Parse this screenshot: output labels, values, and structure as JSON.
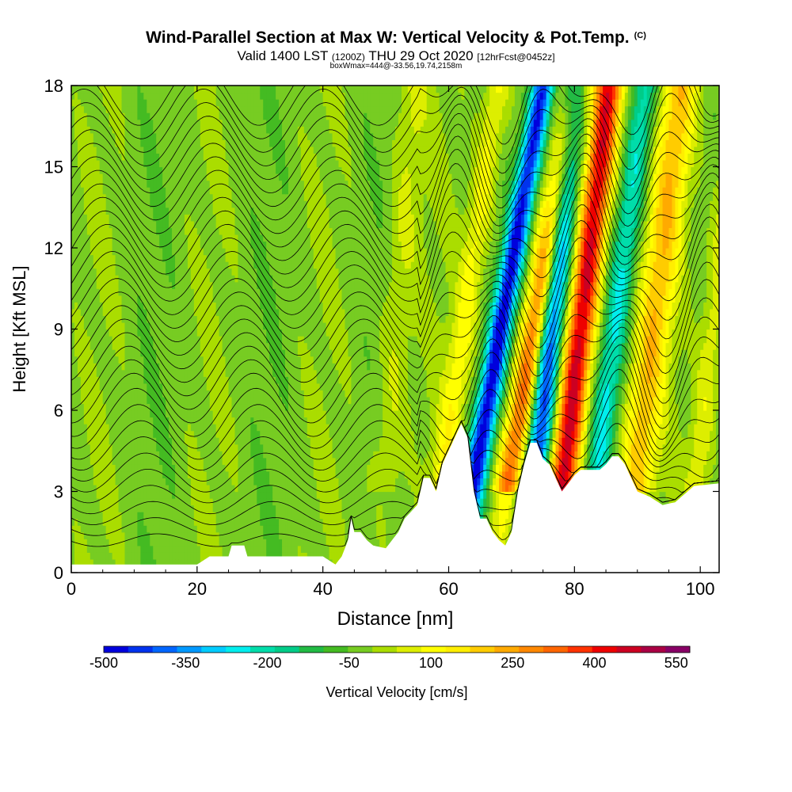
{
  "title": {
    "main": "Wind-Parallel Section at Max W: Vertical Velocity & Pot.Temp.",
    "copyright": "(C)",
    "valid_prefix": "Valid 1400 LST",
    "valid_utc": "(1200Z)",
    "valid_date": "THU 29 Oct 2020",
    "forecast": "[12hrFcst@0452z]",
    "box_info": "boxWmax=444@-33.56,19.74,2158m"
  },
  "colors": {
    "terrain": "#ffffff",
    "isentrope": "#000000",
    "palette": [
      "#0000dd",
      "#0033ee",
      "#0066ff",
      "#0099ff",
      "#00ccff",
      "#00eeee",
      "#00ddaa",
      "#00cc88",
      "#22bb44",
      "#44bb22",
      "#77cc22",
      "#aadd00",
      "#ddee00",
      "#ffff00",
      "#ffee00",
      "#ffcc00",
      "#ffaa00",
      "#ff8800",
      "#ff6600",
      "#ff3300",
      "#ee0000",
      "#cc0022",
      "#aa0044",
      "#880066"
    ]
  },
  "chart_data": {
    "type": "heatmap",
    "xlabel": "Distance [nm]",
    "ylabel": "Height [Kft MSL]",
    "xlim": [
      0,
      103
    ],
    "ylim": [
      0,
      18
    ],
    "x_ticks": [
      "0",
      "20",
      "40",
      "60",
      "80",
      "100"
    ],
    "y_ticks": [
      "0",
      "3",
      "6",
      "9",
      "12",
      "15",
      "18"
    ],
    "colorbar": {
      "label": "Vertical Velocity [cm/s]",
      "ticks": [
        "-500",
        "-350",
        "-200",
        "-50",
        "100",
        "250",
        "400",
        "550"
      ],
      "min": -500,
      "max": 575,
      "step": 50
    },
    "terrain_profile": [
      [
        0,
        0.3
      ],
      [
        20,
        0.3
      ],
      [
        22,
        0.6
      ],
      [
        25,
        0.6
      ],
      [
        25.5,
        1.0
      ],
      [
        27.5,
        1.0
      ],
      [
        28,
        0.6
      ],
      [
        40,
        0.6
      ],
      [
        42,
        0.3
      ],
      [
        43,
        0.6
      ],
      [
        44,
        1.2
      ],
      [
        44.5,
        2.0
      ],
      [
        45,
        1.5
      ],
      [
        46,
        1.5
      ],
      [
        47,
        1.2
      ],
      [
        48,
        1.0
      ],
      [
        50,
        0.9
      ],
      [
        52,
        1.5
      ],
      [
        53,
        2.0
      ],
      [
        55,
        2.5
      ],
      [
        56,
        3.5
      ],
      [
        57,
        3.5
      ],
      [
        58,
        3.0
      ],
      [
        59,
        4.0
      ],
      [
        60,
        4.5
      ],
      [
        61,
        5.0
      ],
      [
        62,
        5.5
      ],
      [
        63,
        5.0
      ],
      [
        63.5,
        4.0
      ],
      [
        64,
        3.0
      ],
      [
        65,
        2.0
      ],
      [
        66,
        2.0
      ],
      [
        67,
        1.5
      ],
      [
        68,
        1.2
      ],
      [
        69,
        1.0
      ],
      [
        70,
        1.5
      ],
      [
        71,
        3.0
      ],
      [
        72,
        4.0
      ],
      [
        73,
        4.8
      ],
      [
        74,
        4.8
      ],
      [
        75,
        4.2
      ],
      [
        76,
        4.0
      ],
      [
        77,
        3.5
      ],
      [
        78,
        3.0
      ],
      [
        79,
        3.3
      ],
      [
        80,
        3.6
      ],
      [
        81,
        3.8
      ],
      [
        82,
        3.8
      ],
      [
        83,
        3.8
      ],
      [
        84,
        3.8
      ],
      [
        85,
        4.0
      ],
      [
        86,
        4.3
      ],
      [
        87,
        4.3
      ],
      [
        88,
        4.0
      ],
      [
        89,
        3.5
      ],
      [
        90,
        3.0
      ],
      [
        92,
        2.8
      ],
      [
        94,
        2.5
      ],
      [
        96,
        2.6
      ],
      [
        97,
        2.8
      ],
      [
        98,
        3.0
      ],
      [
        99,
        3.2
      ],
      [
        103,
        3.3
      ]
    ],
    "updraft_cores": [
      {
        "x_surface": 67,
        "tilt": 0.75,
        "width": 2.2,
        "w_max": 400
      },
      {
        "x_surface": 76.5,
        "tilt": 0.5,
        "width": 2.3,
        "w_max": 540
      },
      {
        "x_surface": 88,
        "tilt": 0.5,
        "width": 2.8,
        "w_max": 250
      },
      {
        "x_surface": 98,
        "tilt": 0.45,
        "width": 2.0,
        "w_max": 120
      },
      {
        "x_surface": 57,
        "tilt": 0.6,
        "width": 2.0,
        "w_max": 150
      },
      {
        "x_surface": 49,
        "tilt": 0.3,
        "width": 2.5,
        "w_max": 80
      }
    ],
    "downdraft_cores": [
      {
        "x_surface": 61.5,
        "tilt": 0.75,
        "width": 1.8,
        "w_min": -500
      },
      {
        "x_surface": 72.2,
        "tilt": 0.45,
        "width": 2.0,
        "w_min": -500
      },
      {
        "x_surface": 81.5,
        "tilt": 0.55,
        "width": 2.0,
        "w_min": -220
      }
    ],
    "isentrope_count": 34
  }
}
